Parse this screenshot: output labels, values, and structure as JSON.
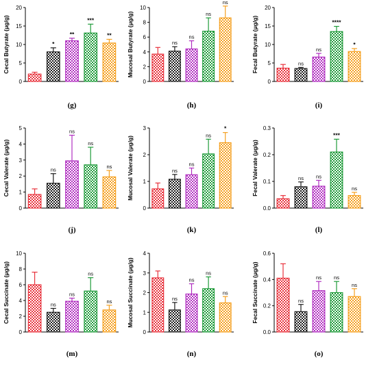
{
  "colors": {
    "groups": [
      "#e8323c",
      "#1a1a1a",
      "#b02ec0",
      "#1f9b3a",
      "#f5a020"
    ]
  },
  "chart_data": [
    {
      "type": "bar",
      "panel": "(g)",
      "ylabel": "Cecal Butyrate (μg/g)",
      "ylim": [
        0,
        20
      ],
      "yticks": [
        "0",
        "5",
        "10",
        "15",
        "20"
      ],
      "values": [
        2.0,
        8.0,
        11.0,
        13.1,
        10.4
      ],
      "errors": [
        0.5,
        1.1,
        0.7,
        2.4,
        1.0
      ],
      "sig": [
        "",
        "*",
        "**",
        "***",
        "**"
      ]
    },
    {
      "type": "bar",
      "panel": "(h)",
      "ylabel": "Mucosal Butyrate (μg/g)",
      "ylim": [
        0,
        10
      ],
      "yticks": [
        "0",
        "2",
        "4",
        "6",
        "8",
        "10"
      ],
      "values": [
        3.7,
        4.1,
        4.4,
        6.8,
        8.6
      ],
      "errors": [
        0.9,
        0.6,
        1.1,
        1.8,
        1.6
      ],
      "sig": [
        "",
        "ns",
        "ns",
        "ns",
        "ns"
      ]
    },
    {
      "type": "bar",
      "panel": "(i)",
      "ylabel": "Fecal Butyrate (μg/g)",
      "ylim": [
        0,
        20
      ],
      "yticks": [
        "0",
        "5",
        "10",
        "15",
        "20"
      ],
      "values": [
        3.6,
        3.5,
        6.6,
        13.5,
        8.1
      ],
      "errors": [
        1.0,
        0.3,
        1.0,
        1.4,
        0.8
      ],
      "sig": [
        "",
        "ns",
        "ns",
        "****",
        "*"
      ]
    },
    {
      "type": "bar",
      "panel": "(j)",
      "ylabel": "Cecal Valerate (μg/g)",
      "ylim": [
        0,
        5
      ],
      "yticks": [
        "0",
        "1",
        "2",
        "3",
        "4",
        "5"
      ],
      "values": [
        0.85,
        1.55,
        2.95,
        2.7,
        1.95
      ],
      "errors": [
        0.35,
        0.6,
        1.6,
        1.1,
        0.4
      ],
      "sig": [
        "",
        "ns",
        "ns",
        "ns",
        "ns"
      ]
    },
    {
      "type": "bar",
      "panel": "(k)",
      "ylabel": "Mucosal Valerate (μg/g)",
      "ylim": [
        0,
        3
      ],
      "yticks": [
        "0",
        "1",
        "2",
        "3"
      ],
      "values": [
        0.72,
        1.08,
        1.25,
        2.03,
        2.45
      ],
      "errors": [
        0.22,
        0.18,
        0.25,
        0.55,
        0.38
      ],
      "sig": [
        "",
        "ns",
        "ns",
        "ns",
        "*"
      ]
    },
    {
      "type": "bar",
      "panel": "(l)",
      "ylabel": "Fecal Valerate (μg/g)",
      "ylim": [
        0,
        0.3
      ],
      "yticks": [
        "0.0",
        "0.1",
        "0.2",
        "0.3"
      ],
      "values": [
        0.035,
        0.08,
        0.082,
        0.21,
        0.047
      ],
      "errors": [
        0.012,
        0.018,
        0.022,
        0.048,
        0.012
      ],
      "sig": [
        "",
        "ns",
        "ns",
        "***",
        "ns"
      ]
    },
    {
      "type": "bar",
      "panel": "(m)",
      "ylabel": "Cecal Succinate (μg/g)",
      "ylim": [
        0,
        10
      ],
      "yticks": [
        "0",
        "2",
        "4",
        "6",
        "8",
        "10"
      ],
      "values": [
        6.0,
        2.5,
        3.9,
        5.2,
        2.8
      ],
      "errors": [
        1.6,
        0.5,
        0.4,
        1.7,
        0.6
      ],
      "sig": [
        "",
        "ns",
        "ns",
        "ns",
        "ns"
      ]
    },
    {
      "type": "bar",
      "panel": "(n)",
      "ylabel": "Mucosal Succinate (μg/g)",
      "ylim": [
        0,
        4
      ],
      "yticks": [
        "0",
        "1",
        "2",
        "3",
        "4"
      ],
      "values": [
        2.75,
        1.12,
        1.93,
        2.2,
        1.48
      ],
      "errors": [
        0.35,
        0.38,
        0.52,
        0.6,
        0.32
      ],
      "sig": [
        "",
        "ns",
        "ns",
        "ns",
        "ns"
      ]
    },
    {
      "type": "bar",
      "panel": "(o)",
      "ylabel": "Fecal Succinate (μg/g)",
      "ylim": [
        0,
        0.6
      ],
      "yticks": [
        "0.0",
        "0.2",
        "0.4",
        "0.6"
      ],
      "values": [
        0.41,
        0.155,
        0.315,
        0.3,
        0.27
      ],
      "errors": [
        0.11,
        0.055,
        0.07,
        0.085,
        0.06
      ],
      "sig": [
        "",
        "ns",
        "ns",
        "ns",
        "ns"
      ]
    }
  ]
}
